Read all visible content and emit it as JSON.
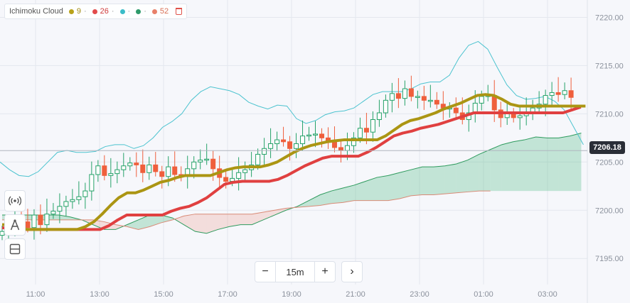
{
  "legend": {
    "title": "Ichimoku Cloud",
    "params": [
      "9",
      "26",
      "52"
    ],
    "colors": [
      "#b8a21a",
      "#e24b4b",
      "#3bbcc8",
      "#2e9a6a",
      "#e8806a"
    ]
  },
  "toolbar": {
    "tools": [
      "broadcast-icon",
      "compass-icon",
      "layout-icon"
    ]
  },
  "timeframe": {
    "minus": "−",
    "value": "15m",
    "plus": "+",
    "next": "›"
  },
  "price_label": "7206.18",
  "chart_data": {
    "type": "candlestick",
    "y_ticks": [
      7195.0,
      7200.0,
      7205.0,
      7210.0,
      7215.0,
      7220.0
    ],
    "x_ticks": [
      "11:00",
      "13:00",
      "15:00",
      "17:00",
      "19:00",
      "21:00",
      "23:00",
      "01:00",
      "03:00"
    ],
    "ylim": [
      7190.6,
      7221.8
    ],
    "current_price": 7206.18,
    "candles_close": [
      7197.8,
      7198.3,
      7199.0,
      7198.8,
      7198.2,
      7199.5,
      7198.5,
      7199.6,
      7199.9,
      7200.4,
      7200.9,
      7201.1,
      7201.4,
      7202.0,
      7203.7,
      7204.6,
      7203.6,
      7203.8,
      7204.2,
      7204.6,
      7204.9,
      7204.7,
      7203.9,
      7204.7,
      7204.0,
      7203.5,
      7204.5,
      7203.7,
      7203.5,
      7204.3,
      7205.0,
      7205.2,
      7205.3,
      7204.3,
      7203.4,
      7203.0,
      7203.3,
      7203.9,
      7204.2,
      7204.7,
      7205.8,
      7206.4,
      7206.9,
      7207.3,
      7207.1,
      7206.4,
      7206.9,
      7207.7,
      7207.8,
      7207.9,
      7207.5,
      7207.1,
      7206.5,
      7206.2,
      7206.7,
      7207.5,
      7208.5,
      7208.1,
      7209.4,
      7210.1,
      7211.4,
      7212.1,
      7211.6,
      7212.6,
      7211.8,
      7211.8,
      7211.4,
      7211.4,
      7211.0,
      7210.6,
      7210.6,
      7210.1,
      7209.4,
      7210.1,
      7211.1,
      7211.8,
      7211.9,
      7210.4,
      7209.6,
      7210.0,
      7209.6,
      7209.8,
      7210.1,
      7210.6,
      7211.0,
      7211.9,
      7212.2,
      7212.0,
      7212.4,
      7211.7
    ],
    "tenkan": [
      7198.5,
      7198.5,
      7198.2,
      7198.0,
      7198.0,
      7198.0,
      7198.0,
      7198.0,
      7198.0,
      7198.0,
      7198.3,
      7198.8,
      7199.6,
      7200.5,
      7201.3,
      7201.8,
      7201.8,
      7202.1,
      7202.5,
      7202.9,
      7203.1,
      7203.4,
      7203.6,
      7203.6,
      7203.6,
      7203.6,
      7203.9,
      7204.2,
      7204.4,
      7204.5,
      7204.5,
      7204.5,
      7204.7,
      7205.0,
      7205.5,
      7206.0,
      7206.4,
      7206.7,
      7206.9,
      7207.1,
      7207.2,
      7207.3,
      7207.3,
      7207.3,
      7207.3,
      7207.3,
      7207.7,
      7208.3,
      7208.9,
      7209.3,
      7209.5,
      7209.8,
      7210.1,
      7210.5,
      7210.8,
      7211.1,
      7211.5,
      7211.9,
      7212.0,
      7211.9,
      7211.5,
      7211.0,
      7210.8,
      7210.8,
      7210.8,
      7210.8,
      7210.8,
      7210.8,
      7210.8,
      7210.8,
      7210.8
    ],
    "kijun": [
      7198.2,
      7198.0,
      7198.0,
      7198.0,
      7198.0,
      7198.0,
      7198.0,
      7198.0,
      7198.0,
      7198.0,
      7198.0,
      7198.0,
      7198.4,
      7199.0,
      7199.5,
      7199.5,
      7199.5,
      7199.5,
      7199.5,
      7199.9,
      7200.2,
      7200.4,
      7200.8,
      7201.3,
      7202.0,
      7202.7,
      7202.9,
      7203.0,
      7203.0,
      7203.0,
      7203.0,
      7203.2,
      7203.6,
      7204.1,
      7204.6,
      7205.0,
      7205.4,
      7205.6,
      7205.6,
      7205.6,
      7205.6,
      7206.0,
      7206.5,
      7207.1,
      7207.7,
      7208.0,
      7208.2,
      7208.5,
      7208.7,
      7208.9,
      7209.2,
      7209.5,
      7209.8,
      7210.1,
      7210.1,
      7210.1,
      7210.1,
      7210.1,
      7210.1,
      7210.1,
      7210.1,
      7210.1,
      7210.1,
      7210.1,
      7210.4,
      7210.7
    ],
    "span_a": [
      7199.5,
      7199.5,
      7199.5,
      7199.5,
      7199.5,
      7199.5,
      7199.3,
      7199.0,
      7198.5,
      7198.0,
      7198.0,
      7198.5,
      7199.0,
      7199.5,
      7199.5,
      7199.2,
      7198.5,
      7197.8,
      7197.6,
      7198.0,
      7198.3,
      7198.5,
      7198.5,
      7199.0,
      7199.5,
      7200.0,
      7200.4,
      7201.0,
      7201.6,
      7202.0,
      7202.3,
      7202.6,
      7203.0,
      7203.4,
      7203.6,
      7203.9,
      7204.2,
      7204.5,
      7204.5,
      7204.6,
      7204.8,
      7205.2,
      7205.8,
      7206.3,
      7206.8,
      7207.1,
      7207.3,
      7207.6,
      7207.5,
      7207.5,
      7207.7,
      7208.0
    ],
    "span_b": [
      7199.0,
      7199.0,
      7199.0,
      7199.0,
      7199.0,
      7199.0,
      7199.0,
      7199.0,
      7199.0,
      7198.8,
      7198.5,
      7198.3,
      7198.0,
      7198.3,
      7198.7,
      7199.0,
      7199.4,
      7199.6,
      7199.6,
      7199.6,
      7199.6,
      7199.6,
      7199.6,
      7199.8,
      7200.0,
      7200.2,
      7200.3,
      7200.4,
      7200.5,
      7200.7,
      7200.8,
      7201.0,
      7201.0,
      7201.0,
      7201.0,
      7201.2,
      7201.5,
      7201.6,
      7201.6,
      7201.7,
      7201.8,
      7201.9,
      7202.0,
      7202.0
    ],
    "chikou": [
      7205.0,
      7204.2,
      7203.6,
      7203.5,
      7204.0,
      7205.0,
      7206.0,
      7206.2,
      7206.0,
      7206.0,
      7206.1,
      7206.6,
      7206.8,
      7206.8,
      7206.4,
      7206.7,
      7207.5,
      7208.6,
      7209.2,
      7210.0,
      7211.4,
      7212.3,
      7212.8,
      7212.6,
      7212.4,
      7212.0,
      7211.2,
      7210.8,
      7210.5,
      7210.9,
      7210.8,
      7209.5,
      7209.0,
      7209.3,
      7209.9,
      7210.2,
      7210.3,
      7210.6,
      7211.3,
      7212.0,
      7212.3,
      7212.3,
      7212.3,
      7212.6,
      7213.1,
      7213.3,
      7213.3,
      7214.0,
      7215.8,
      7217.1,
      7217.5,
      7216.7,
      7214.8,
      7213.0,
      7211.9,
      7211.5,
      7211.6,
      7211.8,
      7211.3,
      7210.4,
      7208.6,
      7206.8
    ],
    "colors": {
      "up": "#26a269",
      "down": "#ef5f3c",
      "tenkan": "#ab9513",
      "kijun": "#e04040",
      "chikou": "#4cc3cf",
      "span_a": "#2f9b5e",
      "span_b": "#d98a76",
      "cloud_up": "rgba(60,180,120,0.28)",
      "cloud_down": "rgba(230,130,110,0.22)"
    }
  }
}
